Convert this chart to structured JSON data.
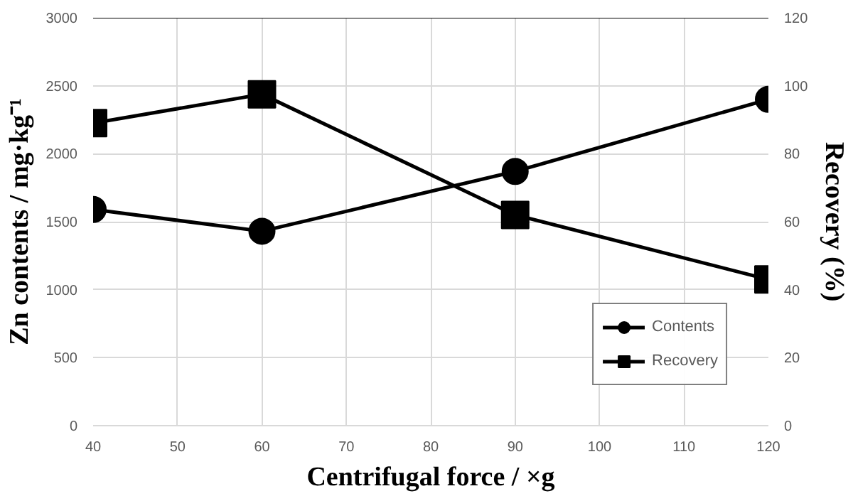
{
  "chart_data": {
    "type": "line",
    "xlabel": "Centrifugal force / ×g",
    "ylabel": "Zn contents / mg·kg⁻¹",
    "y2label": "Recovery (%)",
    "x": [
      40,
      60,
      90,
      120
    ],
    "series": [
      {
        "name": "Contents",
        "color": "#000000",
        "values": [
          1590,
          1430,
          1870,
          2400
        ],
        "marker": "circle"
      },
      {
        "name": "Recovery",
        "color": "#000000",
        "values": [
          89,
          97.5,
          62,
          43
        ],
        "marker": "square",
        "axis": "y2"
      }
    ],
    "xlim": [
      40,
      120
    ],
    "xticks": [
      40,
      50,
      60,
      70,
      80,
      90,
      100,
      110,
      120
    ],
    "ylim": [
      0,
      3000
    ],
    "yticks": [
      0,
      500,
      1000,
      1500,
      2000,
      2500,
      3000
    ],
    "y2lim": [
      0,
      120
    ],
    "y2ticks": [
      0,
      20,
      40,
      60,
      80,
      100,
      120
    ],
    "grid": true,
    "legend": "bottom right",
    "line_style": "solid"
  }
}
